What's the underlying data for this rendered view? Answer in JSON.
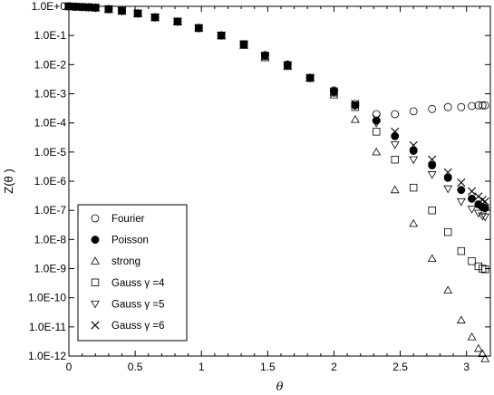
{
  "chart_data": {
    "type": "scatter",
    "xlabel": "θ",
    "ylabel": "Z(θ )",
    "xlim": [
      0,
      3.18
    ],
    "ylim": [
      1e-12,
      1.0
    ],
    "yscale": "log",
    "grid": false,
    "legend_position": "lower-left",
    "x_ticks": [
      0,
      0.5,
      1,
      1.5,
      2,
      2.5,
      3
    ],
    "x_tick_labels": [
      "0",
      "0.5",
      "1",
      "1.5",
      "2",
      "2.5",
      "3"
    ],
    "y_ticks": [
      1.0,
      0.1,
      0.01,
      0.001,
      0.0001,
      1e-05,
      1e-06,
      1e-07,
      1e-08,
      1e-09,
      1e-10,
      1e-11,
      1e-12
    ],
    "y_tick_labels": [
      "1.0E+0",
      "1.0E-1",
      "1.0E-2",
      "1.0E-3",
      "1.0E-4",
      "1.0E-5",
      "1.0E-6",
      "1.0E-7",
      "1.0E-8",
      "1.0E-9",
      "1.0E-10",
      "1.0E-11",
      "1.0E-12"
    ],
    "series": [
      {
        "name": "Fourier",
        "marker": "circle-open",
        "points": [
          [
            0.0,
            1.0
          ],
          [
            0.05,
            0.97
          ],
          [
            0.1,
            0.95
          ],
          [
            0.15,
            0.93
          ],
          [
            0.2,
            0.9
          ],
          [
            0.3,
            0.8
          ],
          [
            0.4,
            0.7
          ],
          [
            0.52,
            0.57
          ],
          [
            0.65,
            0.42
          ],
          [
            0.82,
            0.3
          ],
          [
            0.98,
            0.18
          ],
          [
            1.15,
            0.1
          ],
          [
            1.32,
            0.05
          ],
          [
            1.48,
            0.021
          ],
          [
            1.65,
            0.01
          ],
          [
            1.82,
            0.0035
          ],
          [
            2.0,
            0.0013
          ],
          [
            2.16,
            0.00045
          ],
          [
            2.32,
            0.0002
          ],
          [
            2.46,
            0.0002
          ],
          [
            2.6,
            0.00025
          ],
          [
            2.74,
            0.0003
          ],
          [
            2.86,
            0.00035
          ],
          [
            2.96,
            0.00035
          ],
          [
            3.04,
            0.00038
          ],
          [
            3.09,
            0.0004
          ],
          [
            3.12,
            0.0004
          ],
          [
            3.14,
            0.0004
          ]
        ]
      },
      {
        "name": "Poisson",
        "marker": "circle-filled",
        "points": [
          [
            0.0,
            1.0
          ],
          [
            0.05,
            0.97
          ],
          [
            0.1,
            0.95
          ],
          [
            0.15,
            0.93
          ],
          [
            0.2,
            0.9
          ],
          [
            0.3,
            0.8
          ],
          [
            0.4,
            0.7
          ],
          [
            0.52,
            0.57
          ],
          [
            0.65,
            0.42
          ],
          [
            0.82,
            0.3
          ],
          [
            0.98,
            0.18
          ],
          [
            1.15,
            0.1
          ],
          [
            1.32,
            0.05
          ],
          [
            1.48,
            0.021
          ],
          [
            1.65,
            0.01
          ],
          [
            1.82,
            0.0035
          ],
          [
            2.0,
            0.0012
          ],
          [
            2.16,
            0.0004
          ],
          [
            2.32,
            0.00012
          ],
          [
            2.46,
            3.5e-05
          ],
          [
            2.6,
            1.1e-05
          ],
          [
            2.74,
            3.5e-06
          ],
          [
            2.86,
            1.3e-06
          ],
          [
            2.96,
            5e-07
          ],
          [
            3.04,
            2.5e-07
          ],
          [
            3.09,
            1.6e-07
          ],
          [
            3.12,
            1.3e-07
          ],
          [
            3.14,
            1.2e-07
          ]
        ]
      },
      {
        "name": "strong",
        "marker": "triangle-up-open",
        "points": [
          [
            0.0,
            1.0
          ],
          [
            0.05,
            0.97
          ],
          [
            0.1,
            0.95
          ],
          [
            0.15,
            0.93
          ],
          [
            0.2,
            0.9
          ],
          [
            0.3,
            0.8
          ],
          [
            0.4,
            0.7
          ],
          [
            0.52,
            0.57
          ],
          [
            0.65,
            0.42
          ],
          [
            0.82,
            0.3
          ],
          [
            0.98,
            0.18
          ],
          [
            1.15,
            0.1
          ],
          [
            1.32,
            0.045
          ],
          [
            1.48,
            0.017
          ],
          [
            1.65,
            0.0085
          ],
          [
            1.82,
            0.0035
          ],
          [
            2.0,
            0.0009
          ],
          [
            2.16,
            0.00013
          ],
          [
            2.32,
            1e-05
          ],
          [
            2.46,
            5e-07
          ],
          [
            2.6,
            3.5e-08
          ],
          [
            2.74,
            2.2e-09
          ],
          [
            2.86,
            1.8e-10
          ],
          [
            2.96,
            1.7e-11
          ],
          [
            3.04,
            4.5e-12
          ],
          [
            3.09,
            1.8e-12
          ],
          [
            3.12,
            1.2e-12
          ],
          [
            3.14,
            8e-13
          ]
        ]
      },
      {
        "name": "Gauss  γ =4",
        "marker": "square-open",
        "points": [
          [
            0.0,
            1.0
          ],
          [
            0.05,
            0.97
          ],
          [
            0.1,
            0.95
          ],
          [
            0.15,
            0.93
          ],
          [
            0.2,
            0.9
          ],
          [
            0.3,
            0.8
          ],
          [
            0.4,
            0.7
          ],
          [
            0.52,
            0.57
          ],
          [
            0.65,
            0.42
          ],
          [
            0.82,
            0.3
          ],
          [
            0.98,
            0.18
          ],
          [
            1.15,
            0.1
          ],
          [
            1.32,
            0.05
          ],
          [
            1.48,
            0.02
          ],
          [
            1.65,
            0.0095
          ],
          [
            1.82,
            0.0035
          ],
          [
            2.0,
            0.0011
          ],
          [
            2.16,
            0.00035
          ],
          [
            2.32,
            5e-05
          ],
          [
            2.46,
            5.5e-06
          ],
          [
            2.6,
            6e-07
          ],
          [
            2.74,
            1e-07
          ],
          [
            2.86,
            1.8e-08
          ],
          [
            2.96,
            4e-09
          ],
          [
            3.04,
            1.8e-09
          ],
          [
            3.09,
            1.2e-09
          ],
          [
            3.12,
            1e-09
          ],
          [
            3.14,
            9.5e-10
          ]
        ]
      },
      {
        "name": "Gauss  γ =5",
        "marker": "triangle-down-open",
        "points": [
          [
            0.0,
            1.0
          ],
          [
            0.05,
            0.97
          ],
          [
            0.1,
            0.95
          ],
          [
            0.15,
            0.93
          ],
          [
            0.2,
            0.9
          ],
          [
            0.3,
            0.8
          ],
          [
            0.4,
            0.7
          ],
          [
            0.52,
            0.57
          ],
          [
            0.65,
            0.42
          ],
          [
            0.82,
            0.3
          ],
          [
            0.98,
            0.18
          ],
          [
            1.15,
            0.1
          ],
          [
            1.32,
            0.05
          ],
          [
            1.48,
            0.02
          ],
          [
            1.65,
            0.0095
          ],
          [
            1.82,
            0.0035
          ],
          [
            2.0,
            0.0011
          ],
          [
            2.16,
            0.0004
          ],
          [
            2.32,
            0.0001
          ],
          [
            2.46,
            1.8e-05
          ],
          [
            2.6,
            5.5e-06
          ],
          [
            2.74,
            1.7e-06
          ],
          [
            2.86,
            5.5e-07
          ],
          [
            2.96,
            2e-07
          ],
          [
            3.04,
            1.1e-07
          ],
          [
            3.09,
            8e-08
          ],
          [
            3.12,
            6.5e-08
          ],
          [
            3.14,
            6e-08
          ]
        ]
      },
      {
        "name": "Gauss  γ =6",
        "marker": "cross",
        "points": [
          [
            0.0,
            1.0
          ],
          [
            0.05,
            0.97
          ],
          [
            0.1,
            0.95
          ],
          [
            0.15,
            0.93
          ],
          [
            0.2,
            0.9
          ],
          [
            0.3,
            0.8
          ],
          [
            0.4,
            0.7
          ],
          [
            0.52,
            0.57
          ],
          [
            0.65,
            0.42
          ],
          [
            0.82,
            0.3
          ],
          [
            0.98,
            0.18
          ],
          [
            1.15,
            0.1
          ],
          [
            1.32,
            0.05
          ],
          [
            1.48,
            0.02
          ],
          [
            1.65,
            0.0095
          ],
          [
            1.82,
            0.0035
          ],
          [
            2.0,
            0.0012
          ],
          [
            2.16,
            0.00045
          ],
          [
            2.32,
            0.00014
          ],
          [
            2.46,
            5e-05
          ],
          [
            2.6,
            1.7e-05
          ],
          [
            2.74,
            5.5e-06
          ],
          [
            2.86,
            2e-06
          ],
          [
            2.96,
            9e-07
          ],
          [
            3.04,
            4.5e-07
          ],
          [
            3.09,
            3e-07
          ],
          [
            3.12,
            2.3e-07
          ],
          [
            3.14,
            2e-07
          ]
        ]
      }
    ]
  }
}
